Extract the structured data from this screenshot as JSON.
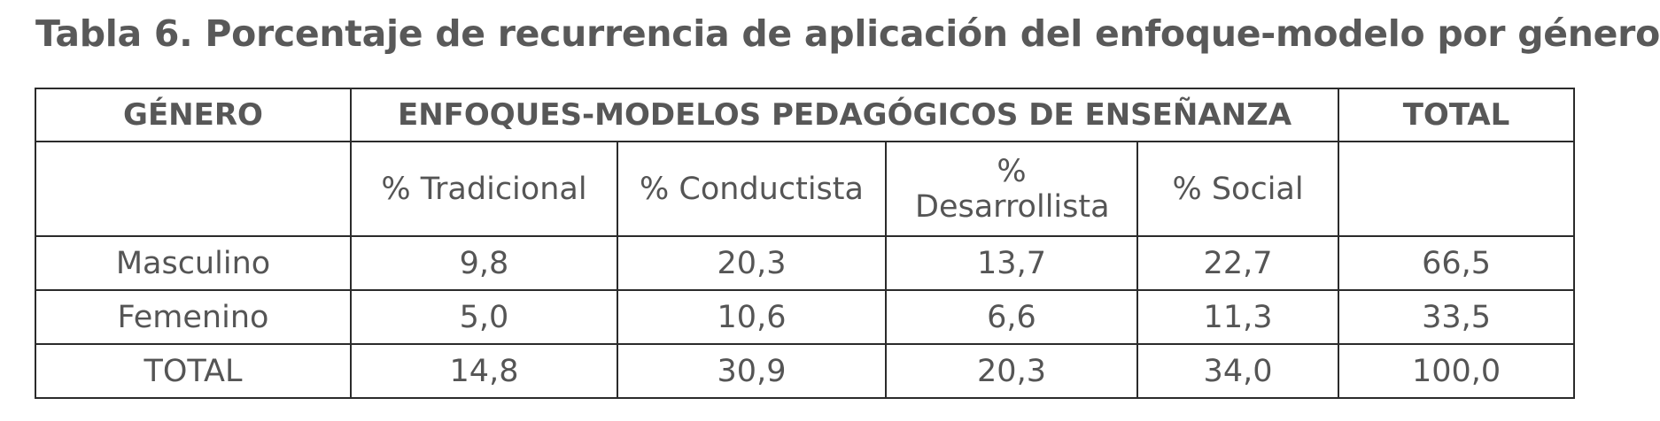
{
  "title": "Tabla 6. Porcentaje de recurrencia de aplicación del enfoque-modelo por género",
  "table": {
    "headers": {
      "genero": "GÉNERO",
      "enfoques": "ENFOQUES-MODELOS PEDAGÓGICOS DE ENSEÑANZA",
      "total": "TOTAL"
    },
    "subheaders": [
      "% Tradicional",
      "% Conductista",
      "% Desarrollista",
      "% Social"
    ],
    "rows": [
      {
        "label": "Masculino",
        "values": [
          "9,8",
          "20,3",
          "13,7",
          "22,7",
          "66,5"
        ]
      },
      {
        "label": "Femenino",
        "values": [
          "5,0",
          "10,6",
          "6,6",
          "11,3",
          "33,5"
        ]
      },
      {
        "label": "TOTAL",
        "values": [
          "14,8",
          "30,9",
          "20,3",
          "34,0",
          "100,0"
        ]
      }
    ]
  }
}
